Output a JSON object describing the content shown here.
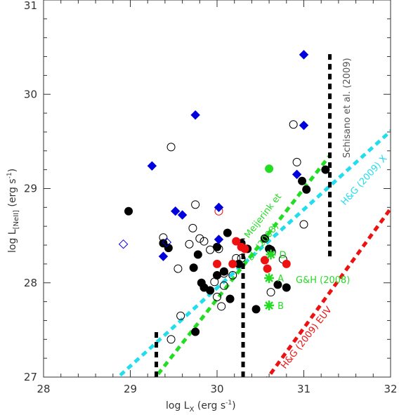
{
  "chart_data": {
    "type": "scatter",
    "title": "",
    "xlabel": {
      "base": "log L",
      "sub": "X",
      "unit_pre": " (erg s",
      "unit_sup": "-1",
      "unit_post": ")"
    },
    "ylabel": {
      "base": "log L",
      "sub": "[NeII]",
      "unit_pre": " (erg s",
      "unit_sup": "-1",
      "unit_post": ")"
    },
    "xlim": [
      28,
      32
    ],
    "ylim": [
      27,
      31
    ],
    "x_ticks": [
      "28",
      "29",
      "30",
      "31",
      "32"
    ],
    "y_ticks": [
      "27",
      "28",
      "29",
      "30",
      "31"
    ],
    "grid": false,
    "colors": {
      "axis": "#333333",
      "black": "#000000",
      "red": "#ee1111",
      "blue": "#0000dd",
      "green": "#22dd22",
      "cyan": "#22ddee",
      "grey_text": "#555555"
    },
    "series": [
      {
        "marker": "filled-circle",
        "color": "black",
        "points": [
          [
            28.98,
            28.76
          ],
          [
            29.38,
            28.42
          ],
          [
            29.44,
            28.37
          ],
          [
            29.73,
            28.16
          ],
          [
            29.78,
            28.3
          ],
          [
            29.82,
            28.0
          ],
          [
            29.92,
            27.92
          ],
          [
            29.85,
            27.95
          ],
          [
            30.0,
            28.08
          ],
          [
            30.08,
            28.12
          ],
          [
            30.12,
            28.53
          ],
          [
            30.0,
            28.38
          ],
          [
            30.25,
            28.2
          ],
          [
            30.28,
            28.42
          ],
          [
            30.35,
            28.36
          ],
          [
            30.55,
            28.47
          ],
          [
            30.6,
            28.36
          ],
          [
            30.7,
            27.98
          ],
          [
            30.8,
            27.95
          ],
          [
            30.62,
            28.35
          ],
          [
            30.98,
            29.08
          ],
          [
            31.03,
            28.99
          ],
          [
            31.25,
            29.2
          ],
          [
            30.15,
            27.83
          ],
          [
            30.45,
            27.72
          ],
          [
            29.75,
            27.48
          ]
        ]
      },
      {
        "marker": "open-circle",
        "color": "black",
        "points": [
          [
            29.47,
            29.44
          ],
          [
            29.38,
            28.48
          ],
          [
            29.55,
            28.15
          ],
          [
            29.75,
            28.83
          ],
          [
            29.72,
            28.58
          ],
          [
            29.8,
            28.47
          ],
          [
            29.85,
            28.44
          ],
          [
            29.68,
            28.41
          ],
          [
            29.92,
            28.35
          ],
          [
            30.02,
            28.36
          ],
          [
            30.08,
            28.1
          ],
          [
            30.0,
            27.85
          ],
          [
            30.05,
            27.75
          ],
          [
            30.18,
            28.08
          ],
          [
            30.22,
            28.26
          ],
          [
            30.28,
            28.26
          ],
          [
            30.08,
            27.97
          ],
          [
            29.97,
            28.01
          ],
          [
            30.63,
            28.33
          ],
          [
            30.76,
            28.25
          ],
          [
            30.88,
            29.68
          ],
          [
            30.92,
            29.28
          ],
          [
            31.0,
            28.62
          ],
          [
            30.62,
            27.9
          ],
          [
            29.58,
            27.65
          ],
          [
            29.47,
            27.4
          ]
        ]
      },
      {
        "marker": "filled-circle",
        "color": "red",
        "points": [
          [
            30.0,
            28.2
          ],
          [
            30.18,
            28.2
          ],
          [
            30.22,
            28.44
          ],
          [
            30.28,
            28.38
          ],
          [
            30.32,
            28.36
          ],
          [
            30.55,
            28.24
          ],
          [
            30.8,
            28.2
          ],
          [
            30.58,
            28.15
          ]
        ]
      },
      {
        "marker": "open-circle",
        "color": "red",
        "points": [
          [
            30.02,
            28.76
          ]
        ]
      },
      {
        "marker": "filled-diamond",
        "color": "blue",
        "points": [
          [
            29.25,
            29.24
          ],
          [
            29.75,
            29.78
          ],
          [
            29.52,
            28.76
          ],
          [
            29.6,
            28.72
          ],
          [
            29.38,
            28.28
          ],
          [
            30.02,
            28.8
          ],
          [
            30.02,
            28.46
          ],
          [
            30.92,
            29.15
          ],
          [
            31.0,
            29.67
          ],
          [
            31.0,
            30.42
          ]
        ]
      },
      {
        "marker": "open-diamond",
        "color": "blue",
        "points": [
          [
            28.92,
            28.41
          ],
          [
            29.42,
            28.43
          ]
        ]
      },
      {
        "marker": "filled-circle",
        "color": "green",
        "points": [
          [
            30.6,
            29.21
          ]
        ]
      }
    ],
    "green_stars": [
      {
        "label": "D",
        "x": 30.62,
        "y": 28.3
      },
      {
        "label": "A",
        "x": 30.6,
        "y": 28.05
      },
      {
        "label": "B",
        "x": 30.6,
        "y": 27.76
      }
    ],
    "dashed_lines": [
      {
        "color": "cyan",
        "x1": 28.8,
        "y1": 26.95,
        "x2": 32.05,
        "y2": 29.65
      },
      {
        "color": "green",
        "x1": 29.25,
        "y1": 26.95,
        "x2": 31.3,
        "y2": 29.35
      },
      {
        "color": "red",
        "x1": 30.55,
        "y1": 26.95,
        "x2": 32.05,
        "y2": 28.85
      },
      {
        "color": "black",
        "x1": 29.3,
        "y1": 27.0,
        "x2": 29.3,
        "y2": 27.5
      },
      {
        "color": "black",
        "x1": 30.3,
        "y1": 27.0,
        "x2": 30.3,
        "y2": 28.47
      },
      {
        "color": "black",
        "x1": 31.3,
        "y1": 28.28,
        "x2": 31.3,
        "y2": 30.47
      }
    ],
    "annotations": {
      "schisano": "Schisano et al. (2009)",
      "hg_x": "H&G (2009) X",
      "meijerink": "Meijerink et al. (2008)",
      "gh": "G&H (2008)",
      "hg_euv": "H&G (2009) EUV"
    }
  }
}
